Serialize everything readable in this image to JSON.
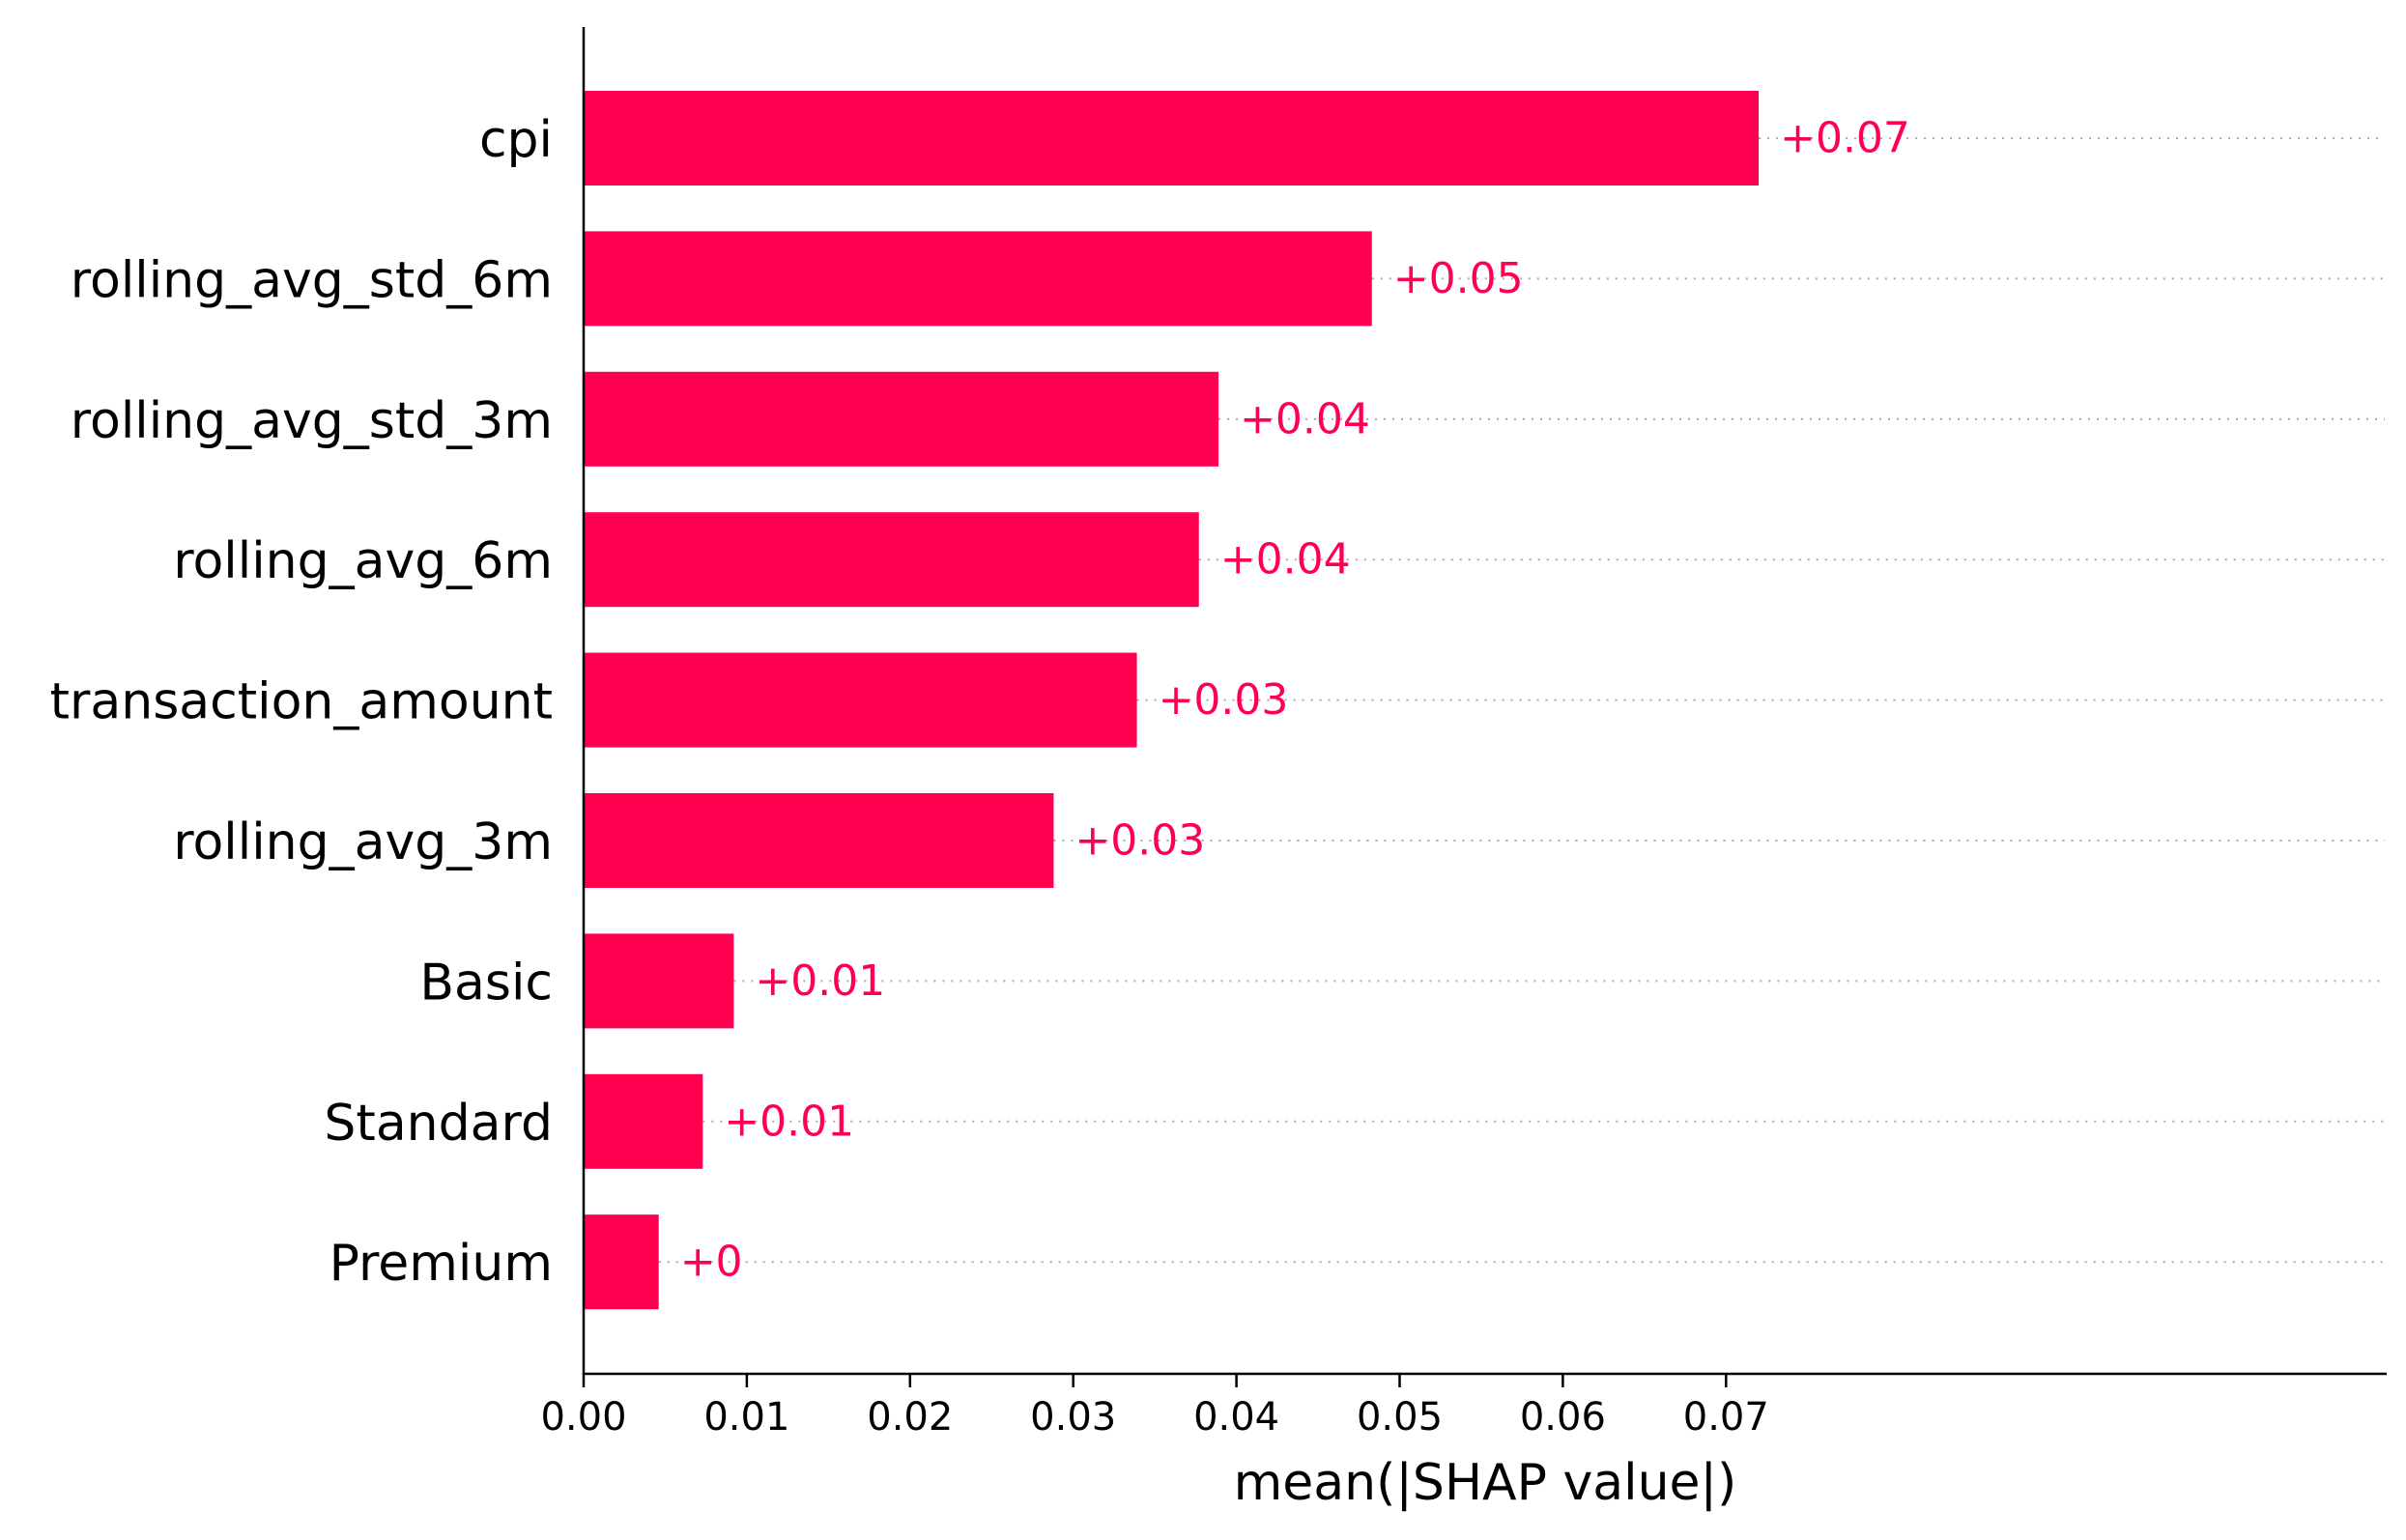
{
  "chart_data": {
    "type": "bar",
    "orientation": "horizontal",
    "categories": [
      "cpi",
      "rolling_avg_std_6m",
      "rolling_avg_std_3m",
      "rolling_avg_6m",
      "transaction_amount",
      "rolling_avg_3m",
      "Basic",
      "Standard",
      "Premium"
    ],
    "values": [
      0.072,
      0.0483,
      0.0389,
      0.0377,
      0.0339,
      0.0288,
      0.0092,
      0.0073,
      0.0046
    ],
    "value_labels": [
      "+0.07",
      "+0.05",
      "+0.04",
      "+0.04",
      "+0.03",
      "+0.03",
      "+0.01",
      "+0.01",
      "+0"
    ],
    "xlabel": "mean(|SHAP value|)",
    "ylabel": "",
    "title": "",
    "xlim": [
      0,
      0.0795
    ],
    "xticks": [
      0.0,
      0.01,
      0.02,
      0.03,
      0.04,
      0.05,
      0.06,
      0.07
    ],
    "xtick_labels": [
      "0.00",
      "0.01",
      "0.02",
      "0.03",
      "0.04",
      "0.05",
      "0.06",
      "0.07"
    ],
    "grid": false,
    "guide_lines": "dotted",
    "legend": "none",
    "colors": {
      "bar": "#ff0051",
      "value_label": "#ff0051",
      "guide_line": "#aaaaaa",
      "axis": "#000000"
    }
  }
}
